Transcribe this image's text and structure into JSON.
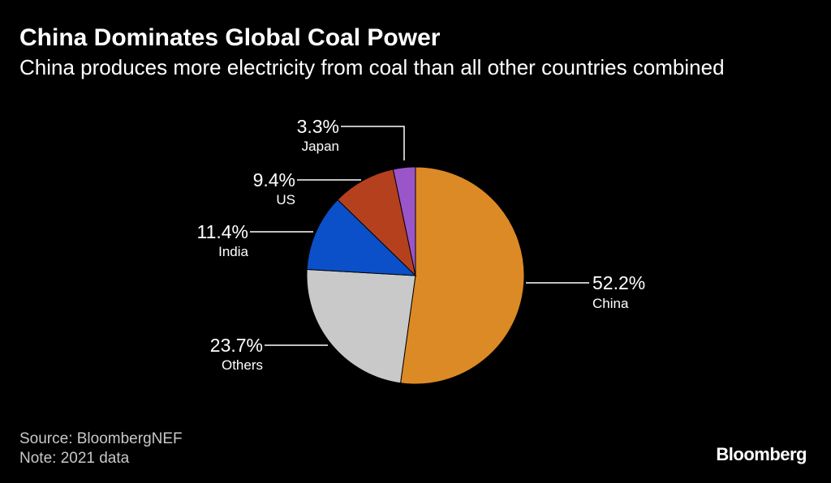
{
  "header": {
    "title": "China Dominates Global Coal Power",
    "subtitle": "China produces more electricity from coal than all other countries combined"
  },
  "footer": {
    "source": "Source: BloombergNEF",
    "note": "Note: 2021 data",
    "brand": "Bloomberg"
  },
  "chart_data": {
    "type": "pie",
    "title": "China Dominates Global Coal Power",
    "subtitle": "China produces more electricity from coal than all other countries combined",
    "unit": "%",
    "slices": [
      {
        "label": "China",
        "value": 52.2,
        "value_label": "52.2%",
        "color": "#dc8a26"
      },
      {
        "label": "Others",
        "value": 23.7,
        "value_label": "23.7%",
        "color": "#c9c9c9"
      },
      {
        "label": "India",
        "value": 11.4,
        "value_label": "11.4%",
        "color": "#0b50c8"
      },
      {
        "label": "US",
        "value": 9.4,
        "value_label": "9.4%",
        "color": "#b5401d"
      },
      {
        "label": "Japan",
        "value": 3.3,
        "value_label": "3.3%",
        "color": "#9a55c8"
      }
    ],
    "legend": "none",
    "label_style": "leader-lines"
  }
}
